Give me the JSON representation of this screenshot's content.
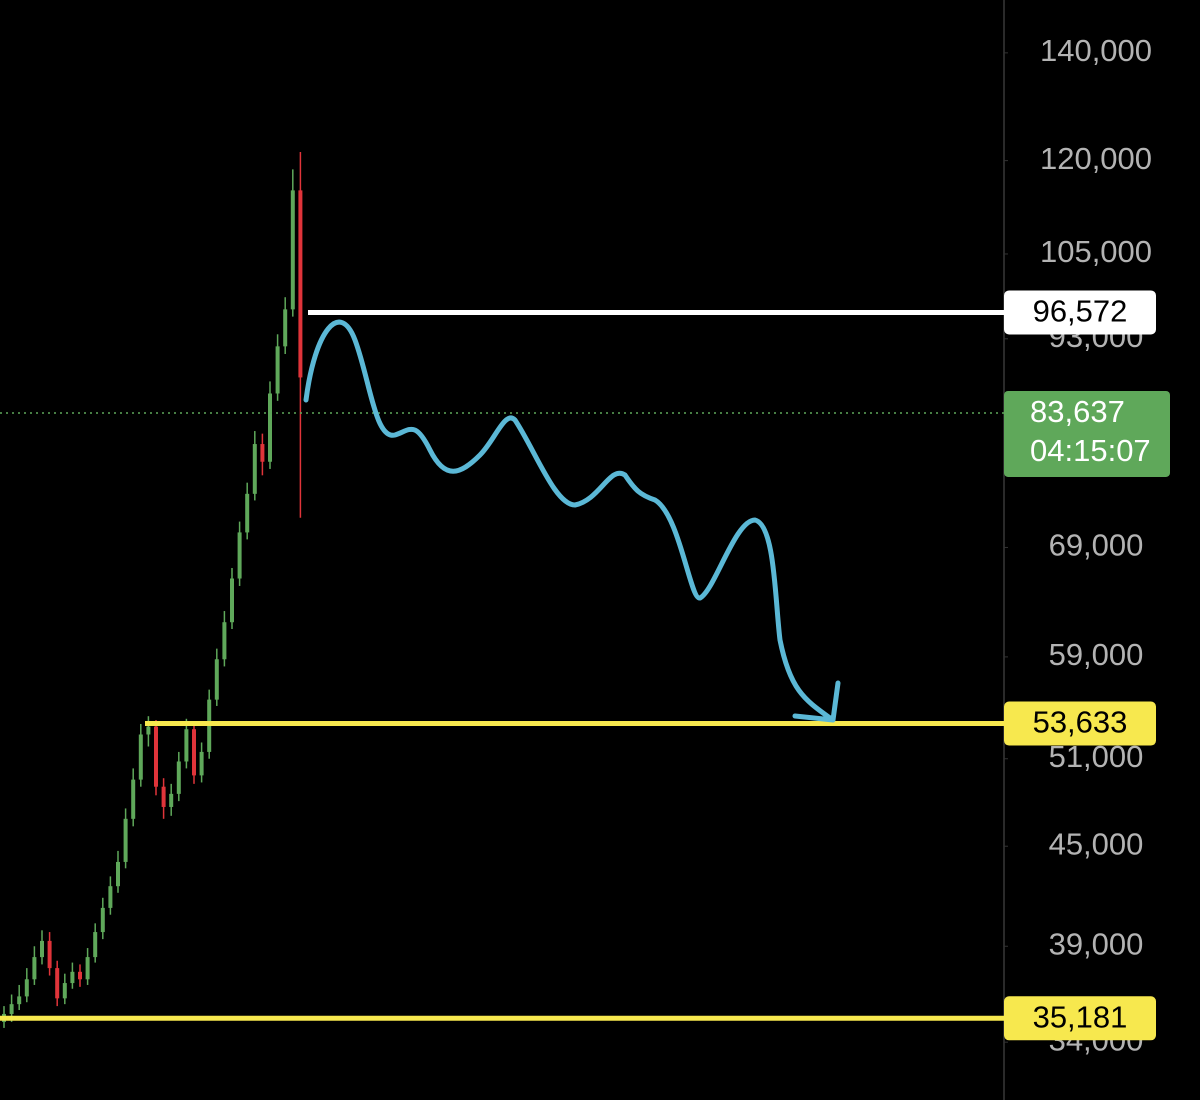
{
  "chart_data": {
    "type": "candlestick",
    "log_scale": true,
    "grid": false,
    "ylim": [
      31300,
      151000
    ],
    "yticks": [
      {
        "value": 140000,
        "label": "140,000"
      },
      {
        "value": 120000,
        "label": "120,000"
      },
      {
        "value": 105000,
        "label": "105,000"
      },
      {
        "value": 93000,
        "label": "93,000"
      },
      {
        "value": 69000,
        "label": "69,000"
      },
      {
        "value": 59000,
        "label": "59,000"
      },
      {
        "value": 51000,
        "label": "51,000"
      },
      {
        "value": 45000,
        "label": "45,000"
      },
      {
        "value": 39000,
        "label": "39,000"
      },
      {
        "value": 34000,
        "label": "34,000"
      }
    ],
    "up_color": "#5fa85a",
    "down_color": "#e0343a",
    "open": [
      35000,
      35400,
      35900,
      36300,
      37200,
      38400,
      39300,
      37800,
      36200,
      37000,
      37600,
      37200,
      38400,
      39800,
      41200,
      42500,
      44000,
      46800,
      49500,
      52800,
      53400,
      49000,
      47600,
      48500,
      50800,
      53200,
      49800,
      51500,
      55500,
      58800,
      62000,
      66000,
      70500,
      74500,
      80000,
      78000,
      86000,
      92000,
      97000,
      115000
    ],
    "high": [
      35800,
      36400,
      36900,
      37800,
      39000,
      39900,
      39800,
      38200,
      37500,
      38100,
      38000,
      38900,
      40300,
      41800,
      43100,
      44700,
      47500,
      50300,
      53600,
      54200,
      53900,
      49600,
      49200,
      51500,
      54000,
      53700,
      52200,
      56300,
      59700,
      63000,
      67000,
      71600,
      75700,
      81500,
      81200,
      87500,
      93600,
      98700,
      118500,
      121500
    ],
    "low": [
      34700,
      35000,
      35600,
      36000,
      36900,
      38000,
      37400,
      35800,
      35900,
      36700,
      36800,
      36900,
      38100,
      39400,
      40800,
      42100,
      43600,
      46300,
      49000,
      51900,
      48400,
      46800,
      47000,
      48000,
      50300,
      49200,
      49300,
      51000,
      55000,
      58200,
      61400,
      65300,
      69800,
      73800,
      76500,
      77200,
      85100,
      91000,
      96000,
      72000
    ],
    "close": [
      35400,
      35900,
      36300,
      37200,
      38400,
      39300,
      37800,
      36200,
      37000,
      37600,
      37200,
      38400,
      39800,
      41200,
      42500,
      44000,
      46800,
      49500,
      52800,
      53400,
      49000,
      47600,
      48500,
      50800,
      53200,
      49800,
      51500,
      55500,
      58800,
      62000,
      66000,
      70500,
      74500,
      80000,
      78000,
      86000,
      92000,
      97000,
      115000,
      88000
    ],
    "levels": [
      {
        "value": 96572,
        "label": "96,572",
        "color": "#ffffff"
      },
      {
        "value": 53633,
        "label": "53,633",
        "color": "#f7e84e"
      },
      {
        "value": 35181,
        "label": "35,181",
        "color": "#f7e84e"
      }
    ],
    "current_price": {
      "value": 83637,
      "label": "83,637",
      "countdown": "04:15:07",
      "color": "#5fa85a"
    }
  }
}
